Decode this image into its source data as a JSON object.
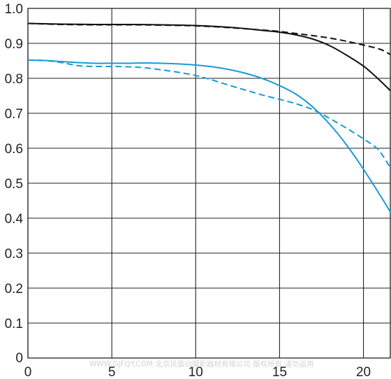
{
  "chart_data": {
    "type": "line",
    "title": "",
    "xlabel": "",
    "ylabel": "",
    "xlim": [
      0,
      21.6
    ],
    "ylim": [
      0,
      1.0
    ],
    "x_ticks": [
      0,
      5,
      10,
      15,
      20
    ],
    "x_tick_labels": [
      "0",
      "5",
      "10",
      "15",
      "20"
    ],
    "y_ticks": [
      0,
      0.1,
      0.2,
      0.3,
      0.4,
      0.5,
      0.6,
      0.7,
      0.8,
      0.9,
      1.0
    ],
    "y_tick_labels": [
      "0",
      "0.1",
      "0.2",
      "0.3",
      "0.4",
      "0.5",
      "0.6",
      "0.7",
      "0.8",
      "0.9",
      "1.0"
    ],
    "grid": true,
    "legend": "none",
    "series": [
      {
        "color": "#111111",
        "style": "solid",
        "x": [
          0,
          2,
          4,
          6,
          8,
          10,
          12,
          13,
          14,
          15,
          16,
          17,
          18,
          19,
          20,
          20.5,
          21,
          21.6
        ],
        "y": [
          0.957,
          0.955,
          0.954,
          0.954,
          0.953,
          0.951,
          0.946,
          0.942,
          0.937,
          0.932,
          0.924,
          0.912,
          0.893,
          0.866,
          0.835,
          0.815,
          0.793,
          0.765
        ]
      },
      {
        "color": "#111111",
        "style": "dashed",
        "x": [
          0,
          2,
          4,
          6,
          8,
          10,
          12,
          14,
          15,
          16,
          17,
          18,
          19,
          20,
          21,
          21.6
        ],
        "y": [
          0.957,
          0.954,
          0.953,
          0.953,
          0.952,
          0.95,
          0.945,
          0.938,
          0.934,
          0.928,
          0.922,
          0.915,
          0.906,
          0.895,
          0.883,
          0.868
        ]
      },
      {
        "color": "#1a9ad6",
        "style": "solid",
        "x": [
          0,
          1,
          2,
          3,
          4,
          5,
          6,
          7,
          8,
          9,
          10,
          11,
          12,
          13,
          14,
          15,
          16,
          17,
          18,
          19,
          20,
          21,
          21.6
        ],
        "y": [
          0.852,
          0.851,
          0.848,
          0.845,
          0.843,
          0.843,
          0.843,
          0.844,
          0.843,
          0.841,
          0.838,
          0.833,
          0.825,
          0.814,
          0.799,
          0.779,
          0.754,
          0.717,
          0.668,
          0.609,
          0.54,
          0.465,
          0.418
        ]
      },
      {
        "color": "#1a9ad6",
        "style": "dashed",
        "x": [
          0,
          1,
          2,
          3,
          4,
          5,
          6,
          7,
          8,
          9,
          10,
          11,
          12,
          13,
          14,
          15,
          16,
          17,
          18,
          19,
          20,
          20.8,
          21.2,
          21.6
        ],
        "y": [
          0.852,
          0.851,
          0.845,
          0.836,
          0.834,
          0.834,
          0.833,
          0.83,
          0.824,
          0.817,
          0.808,
          0.795,
          0.78,
          0.766,
          0.752,
          0.74,
          0.727,
          0.71,
          0.685,
          0.657,
          0.627,
          0.6,
          0.575,
          0.545
        ]
      }
    ]
  },
  "watermark": "WWW.DJFQY.COM 北京风雷动摄影器材有限公司 版权所有 请勿盗用"
}
